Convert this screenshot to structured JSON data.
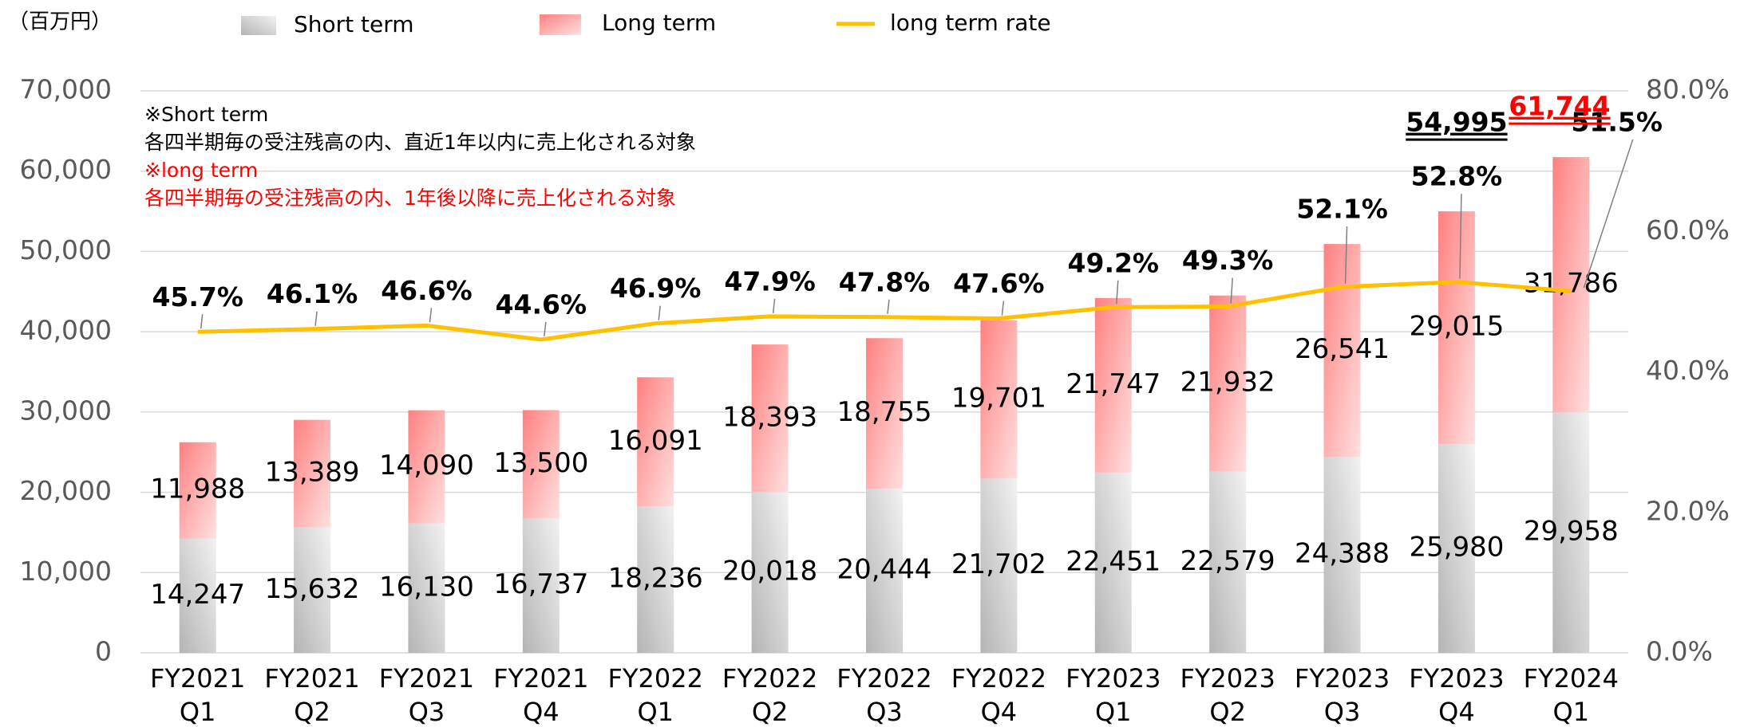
{
  "chart_data": {
    "type": "stacked-bar-line",
    "unit_label": "（百万円）",
    "notes": [
      {
        "text": "※Short term",
        "color": "#000000"
      },
      {
        "text": "各四半期毎の受注残高の内、直近1年以内に売上化される対象",
        "color": "#000000"
      },
      {
        "text": "※long term",
        "color": "#ff0000"
      },
      {
        "text": "各四半期毎の受注残高の内、1年後以降に売上化される対象",
        "color": "#ff0000"
      }
    ],
    "categories": [
      [
        "FY2021",
        "Q1"
      ],
      [
        "FY2021",
        "Q2"
      ],
      [
        "FY2021",
        "Q3"
      ],
      [
        "FY2021",
        "Q4"
      ],
      [
        "FY2022",
        "Q1"
      ],
      [
        "FY2022",
        "Q2"
      ],
      [
        "FY2022",
        "Q3"
      ],
      [
        "FY2022",
        "Q4"
      ],
      [
        "FY2023",
        "Q1"
      ],
      [
        "FY2023",
        "Q2"
      ],
      [
        "FY2023",
        "Q3"
      ],
      [
        "FY2023",
        "Q4"
      ],
      [
        "FY2024",
        "Q1"
      ]
    ],
    "series": [
      {
        "name": "Short term",
        "color": "#b4b4b4",
        "values": [
          14247,
          15632,
          16130,
          16737,
          18236,
          20018,
          20444,
          21702,
          22451,
          22579,
          24388,
          25980,
          29958
        ],
        "value_labels": [
          "14,247",
          "15,632",
          "16,130",
          "16,737",
          "18,236",
          "20,018",
          "20,444",
          "21,702",
          "22,451",
          "22,579",
          "24,388",
          "25,980",
          "29,958"
        ]
      },
      {
        "name": "Long term",
        "color": "#ff8080",
        "values": [
          11988,
          13389,
          14090,
          13500,
          16091,
          18393,
          18755,
          19701,
          21747,
          21932,
          26541,
          29015,
          31786
        ],
        "value_labels": [
          "11,988",
          "13,389",
          "14,090",
          "13,500",
          "16,091",
          "18,393",
          "18,755",
          "19,701",
          "21,747",
          "21,932",
          "26,541",
          "29,015",
          "31,786"
        ]
      },
      {
        "name": "long term rate",
        "color": "#ffc000",
        "axis": "y2",
        "values": [
          45.7,
          46.1,
          46.6,
          44.6,
          46.9,
          47.9,
          47.8,
          47.6,
          49.2,
          49.3,
          52.1,
          52.8,
          51.5
        ],
        "value_labels": [
          "45.7%",
          "46.1%",
          "46.6%",
          "44.6%",
          "46.9%",
          "47.9%",
          "47.8%",
          "47.6%",
          "49.2%",
          "49.3%",
          "52.1%",
          "52.8%",
          "51.5%"
        ]
      }
    ],
    "totals": [
      null,
      null,
      null,
      null,
      null,
      null,
      null,
      null,
      null,
      null,
      null,
      54995,
      61744
    ],
    "total_labels": [
      null,
      null,
      null,
      null,
      null,
      null,
      null,
      null,
      null,
      null,
      null,
      "54,995",
      "61,744"
    ],
    "total_colors": [
      null,
      null,
      null,
      null,
      null,
      null,
      null,
      null,
      null,
      null,
      null,
      "#000000",
      "#ff0000"
    ],
    "ylim": [
      0,
      70000
    ],
    "yticks": [
      0,
      {
        "value": 10000,
        "label": "10,000"
      },
      {
        "value": 20000,
        "label": "20,000"
      },
      {
        "value": 30000,
        "label": "30,000"
      },
      {
        "value": 40000,
        "label": "40,000"
      },
      {
        "value": 50000,
        "label": "50,000"
      },
      {
        "value": 60000,
        "label": "60,000"
      },
      {
        "value": 70000,
        "label": "70,000"
      }
    ],
    "y2lim": [
      0,
      80
    ],
    "y2ticks": [
      {
        "value": 0,
        "label": "0.0%"
      },
      {
        "value": 20,
        "label": "20.0%"
      },
      {
        "value": 40,
        "label": "40.0%"
      },
      {
        "value": 60,
        "label": "60.0%"
      },
      {
        "value": 80,
        "label": "80.0%"
      }
    ],
    "grid": true
  }
}
